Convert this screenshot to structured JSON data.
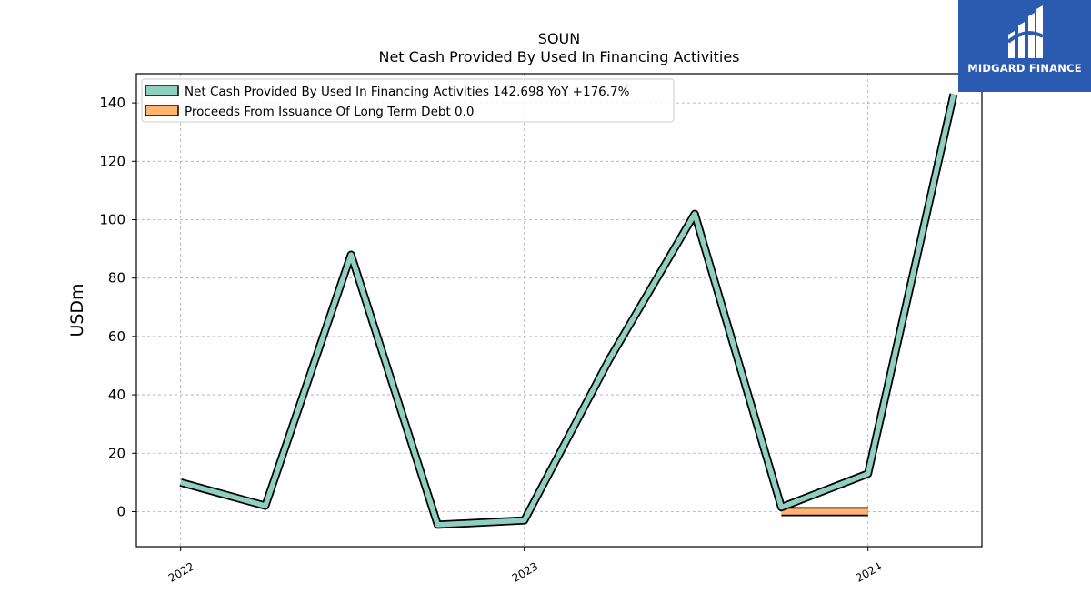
{
  "chart_data": {
    "type": "line",
    "title": "SOUN",
    "subtitle": "Net Cash Provided By Used In Financing Activities",
    "ylabel": "USDm",
    "xlabel": "",
    "ylim": [
      -12,
      150
    ],
    "yticks": [
      0,
      20,
      40,
      60,
      80,
      100,
      120,
      140
    ],
    "xticks": [
      {
        "label": "2022",
        "date": "2022-01-01"
      },
      {
        "label": "2023",
        "date": "2023-01-01"
      },
      {
        "label": "2024",
        "date": "2024-01-01"
      }
    ],
    "xlim": [
      "2021-11-15",
      "2024-05-01"
    ],
    "grid": true,
    "legend_position": "top-left",
    "series": [
      {
        "name": "Net Cash Provided By Used In Financing Activities",
        "legend_label": "Net Cash Provided By Used In Financing Activities  142.698 YoY +176.7%",
        "color": "#8fcfc0",
        "points": [
          {
            "x": "2022-01-01",
            "y": 10
          },
          {
            "x": "2022-04-01",
            "y": 2
          },
          {
            "x": "2022-07-01",
            "y": 88
          },
          {
            "x": "2022-10-01",
            "y": -4.5
          },
          {
            "x": "2023-01-01",
            "y": -3
          },
          {
            "x": "2023-04-01",
            "y": 52
          },
          {
            "x": "2023-07-01",
            "y": 102
          },
          {
            "x": "2023-10-01",
            "y": 1.5
          },
          {
            "x": "2024-01-01",
            "y": 13
          },
          {
            "x": "2024-04-01",
            "y": 143
          }
        ]
      },
      {
        "name": "Proceeds From Issuance Of Long Term Debt",
        "legend_label": "Proceeds From Issuance Of Long Term Debt  0.0",
        "color": "#ffb570",
        "points": [
          {
            "x": "2023-10-01",
            "y": 0
          },
          {
            "x": "2024-01-01",
            "y": 0
          }
        ]
      }
    ]
  },
  "branding": {
    "logo_text": "MIDGARD FINANCE",
    "logo_color": "#2a5bb0"
  }
}
